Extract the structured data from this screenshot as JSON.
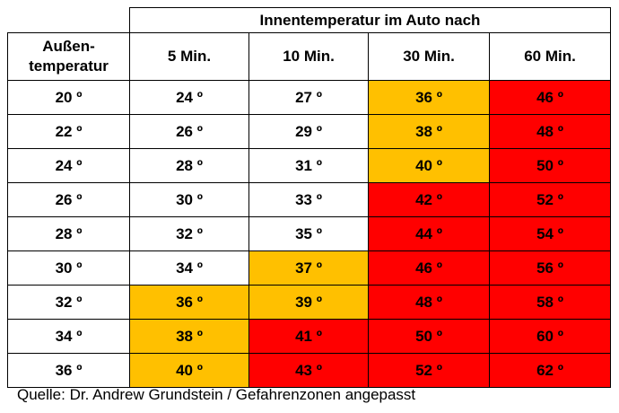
{
  "header": {
    "super_title": "Innentemperatur im Auto nach",
    "row_label_line1": "Außen-",
    "row_label_line2": "temperatur",
    "columns": [
      "5 Min.",
      "10 Min.",
      "30 Min.",
      "60 Min."
    ]
  },
  "colors": {
    "white": "#ffffff",
    "orange": "#ffc000",
    "red": "#ff0000"
  },
  "rows": [
    {
      "outside": "20 º",
      "cells": [
        {
          "v": "24 º",
          "c": "white"
        },
        {
          "v": "27 º",
          "c": "white"
        },
        {
          "v": "36 º",
          "c": "orange"
        },
        {
          "v": "46 º",
          "c": "red"
        }
      ]
    },
    {
      "outside": "22 º",
      "cells": [
        {
          "v": "26 º",
          "c": "white"
        },
        {
          "v": "29 º",
          "c": "white"
        },
        {
          "v": "38 º",
          "c": "orange"
        },
        {
          "v": "48 º",
          "c": "red"
        }
      ]
    },
    {
      "outside": "24 º",
      "cells": [
        {
          "v": "28 º",
          "c": "white"
        },
        {
          "v": "31 º",
          "c": "white"
        },
        {
          "v": "40 º",
          "c": "orange"
        },
        {
          "v": "50 º",
          "c": "red"
        }
      ]
    },
    {
      "outside": "26 º",
      "cells": [
        {
          "v": "30 º",
          "c": "white"
        },
        {
          "v": "33 º",
          "c": "white"
        },
        {
          "v": "42 º",
          "c": "red"
        },
        {
          "v": "52 º",
          "c": "red"
        }
      ]
    },
    {
      "outside": "28 º",
      "cells": [
        {
          "v": "32 º",
          "c": "white"
        },
        {
          "v": "35 º",
          "c": "white"
        },
        {
          "v": "44 º",
          "c": "red"
        },
        {
          "v": "54 º",
          "c": "red"
        }
      ]
    },
    {
      "outside": "30 º",
      "cells": [
        {
          "v": "34 º",
          "c": "white"
        },
        {
          "v": "37 º",
          "c": "orange"
        },
        {
          "v": "46 º",
          "c": "red"
        },
        {
          "v": "56 º",
          "c": "red"
        }
      ]
    },
    {
      "outside": "32 º",
      "cells": [
        {
          "v": "36 º",
          "c": "orange"
        },
        {
          "v": "39 º",
          "c": "orange"
        },
        {
          "v": "48 º",
          "c": "red"
        },
        {
          "v": "58 º",
          "c": "red"
        }
      ]
    },
    {
      "outside": "34 º",
      "cells": [
        {
          "v": "38 º",
          "c": "orange"
        },
        {
          "v": "41 º",
          "c": "red"
        },
        {
          "v": "50 º",
          "c": "red"
        },
        {
          "v": "60 º",
          "c": "red"
        }
      ]
    },
    {
      "outside": "36 º",
      "cells": [
        {
          "v": "40 º",
          "c": "orange"
        },
        {
          "v": "43 º",
          "c": "red"
        },
        {
          "v": "52 º",
          "c": "red"
        },
        {
          "v": "62 º",
          "c": "red"
        }
      ]
    }
  ],
  "source": "Quelle: Dr. Andrew Grundstein / Gefahrenzonen angepasst"
}
